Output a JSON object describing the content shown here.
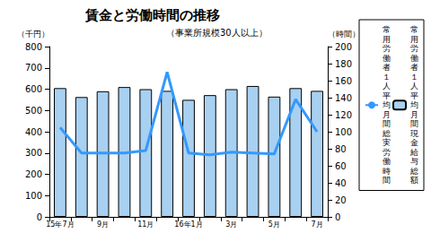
{
  "chart_data": {
    "type": "bar",
    "title": "賃金と労働時間の推移",
    "subtitle": "（事業所規模30人以上）",
    "categories": [
      "15年7月",
      null,
      "9月",
      null,
      "11月",
      null,
      "16年1月",
      null,
      "3月",
      null,
      "5月",
      null,
      "7月"
    ],
    "y_label": "（千円）",
    "y2_label": "（時間）",
    "ylim": [
      0,
      800
    ],
    "yticks": [
      0,
      100,
      200,
      300,
      400,
      500,
      600,
      700,
      800
    ],
    "y2lim": [
      0,
      200
    ],
    "y2ticks": [
      0,
      20,
      40,
      60,
      80,
      100,
      120,
      140,
      160,
      180,
      200
    ],
    "series": [
      {
        "name": "常用労働者１人平均月間総実労働時間",
        "type": "line",
        "axis": "y2",
        "color": "#3399ff",
        "values": [
          105,
          75,
          75,
          75,
          78,
          170,
          75,
          73,
          76,
          75,
          74,
          138,
          100
        ]
      },
      {
        "name": "常用労働者１人平均月間現金給与総額",
        "type": "bar",
        "color": "#a8d0f0",
        "values": [
          605,
          563,
          590,
          610,
          600,
          592,
          550,
          572,
          600,
          615,
          565,
          605,
          592
        ]
      }
    ],
    "legend": "right",
    "grid": false
  }
}
